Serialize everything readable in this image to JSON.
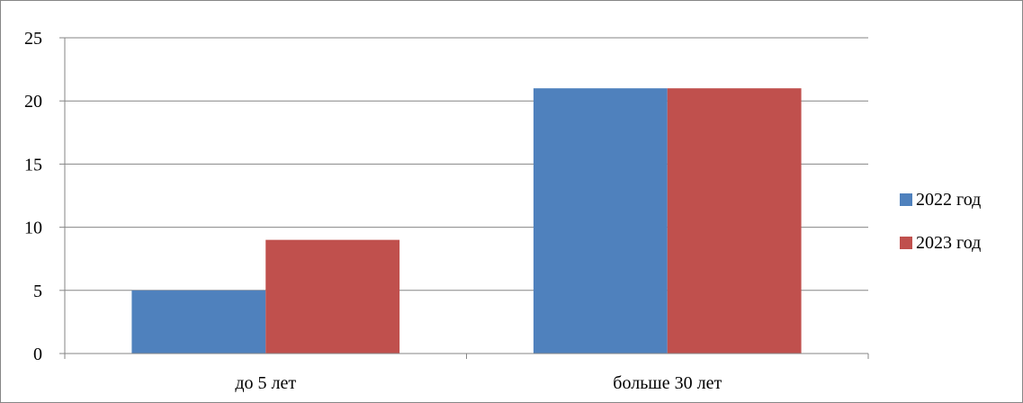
{
  "chart_data": {
    "type": "bar",
    "categories": [
      "до 5 лет",
      "больше 30 лет"
    ],
    "series": [
      {
        "name": "2022 год",
        "values": [
          5,
          21
        ],
        "color": "#4F81BD"
      },
      {
        "name": "2023 год",
        "values": [
          9,
          21
        ],
        "color": "#C0504D"
      }
    ],
    "title": "",
    "xlabel": "",
    "ylabel": "",
    "ylim": [
      0,
      25
    ],
    "yticks": [
      "0",
      "5",
      "10",
      "15",
      "20",
      "25"
    ],
    "grid": true,
    "legend_position": "right"
  }
}
